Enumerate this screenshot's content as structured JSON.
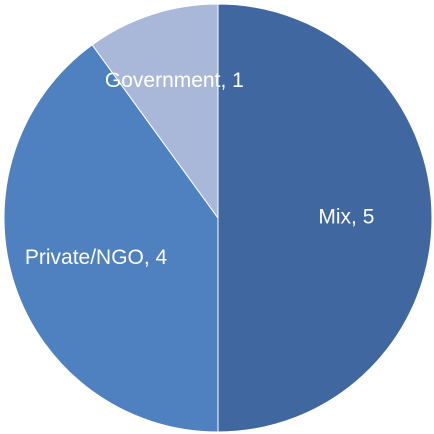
{
  "chart_data": {
    "type": "pie",
    "title": "",
    "slices": [
      {
        "label": "Mix",
        "value": 5,
        "color": "#40679f",
        "display": "Mix, 5"
      },
      {
        "label": "Private/NGO",
        "value": 4,
        "color": "#4f80bf",
        "display": "Private/NGO, 4"
      },
      {
        "label": "Government",
        "value": 1,
        "color": "#a9b7d8",
        "display": "Government, 1"
      }
    ],
    "start": "top",
    "direction": "clockwise",
    "legend": "none",
    "data_labels": "inside"
  }
}
